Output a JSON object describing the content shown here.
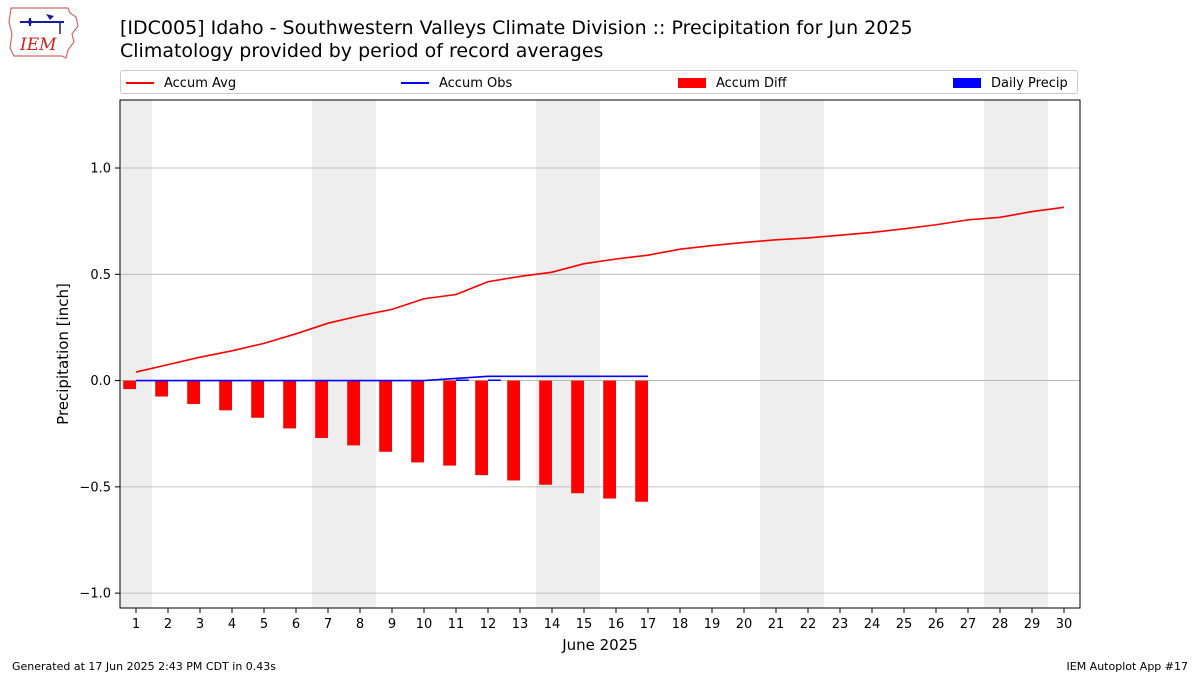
{
  "header": {
    "title": "[IDC005] Idaho - Southwestern Valleys Climate Division :: Precipitation for Jun 2025",
    "subtitle": "Climatology provided by period of record averages"
  },
  "logo": {
    "text": "IEM",
    "icon": "iem-iowa-map-logo-icon"
  },
  "footer": {
    "left": "Generated at 17 Jun 2025 2:43 PM CDT in 0.43s",
    "right": "IEM Autoplot App #17"
  },
  "colors": {
    "avg": "#ff0000",
    "obs": "#0000ff",
    "diff": "#ff0000",
    "daily": "#0000ff",
    "weekend": "#eeeeee",
    "grid": "#b0b0b0"
  },
  "chart_data": {
    "type": "bar",
    "xlabel": "June 2025",
    "ylabel": "Precipitation [inch]",
    "ylim": [
      -1.07,
      1.32
    ],
    "xlim": [
      0.5,
      30.5
    ],
    "yticks": [
      -1.0,
      -0.5,
      0.0,
      0.5,
      1.0
    ],
    "ytick_labels": [
      "−1.0",
      "−0.5",
      "0.0",
      "0.5",
      "1.0"
    ],
    "days": [
      1,
      2,
      3,
      4,
      5,
      6,
      7,
      8,
      9,
      10,
      11,
      12,
      13,
      14,
      15,
      16,
      17,
      18,
      19,
      20,
      21,
      22,
      23,
      24,
      25,
      26,
      27,
      28,
      29,
      30
    ],
    "grid": "horizontal",
    "legend_position": "top",
    "legend": [
      {
        "label": "Accum Avg",
        "kind": "line",
        "color": "#ff0000"
      },
      {
        "label": "Accum Obs",
        "kind": "line",
        "color": "#0000ff"
      },
      {
        "label": "Accum Diff",
        "kind": "patch",
        "color": "#ff0000"
      },
      {
        "label": "Daily Precip",
        "kind": "patch",
        "color": "#0000ff"
      }
    ],
    "weekend_bands": [
      [
        0.5,
        1.5
      ],
      [
        6.5,
        8.5
      ],
      [
        13.5,
        15.5
      ],
      [
        20.5,
        22.5
      ],
      [
        27.5,
        29.5
      ]
    ],
    "series": [
      {
        "name": "Accum Avg",
        "kind": "line",
        "x": [
          1,
          2,
          3,
          4,
          5,
          6,
          7,
          8,
          9,
          10,
          11,
          12,
          13,
          14,
          15,
          16,
          17,
          18,
          19,
          20,
          21,
          22,
          23,
          24,
          25,
          26,
          27,
          28,
          29,
          30
        ],
        "values": [
          0.04,
          0.075,
          0.11,
          0.14,
          0.175,
          0.22,
          0.27,
          0.305,
          0.335,
          0.385,
          0.405,
          0.465,
          0.49,
          0.51,
          0.55,
          0.572,
          0.59,
          0.618,
          0.635,
          0.65,
          0.662,
          0.671,
          0.684,
          0.697,
          0.714,
          0.733,
          0.756,
          0.768,
          0.795,
          0.815
        ]
      },
      {
        "name": "Accum Obs",
        "kind": "line",
        "x": [
          1,
          2,
          3,
          4,
          5,
          6,
          7,
          8,
          9,
          10,
          11,
          12,
          13,
          14,
          15,
          16,
          17
        ],
        "values": [
          0,
          0,
          0,
          0,
          0,
          0,
          0,
          0,
          0,
          0,
          0.01,
          0.02,
          0.02,
          0.02,
          0.02,
          0.02,
          0.02
        ]
      },
      {
        "name": "Accum Diff",
        "kind": "bar",
        "offset": -0.2,
        "x": [
          1,
          2,
          3,
          4,
          5,
          6,
          7,
          8,
          9,
          10,
          11,
          12,
          13,
          14,
          15,
          16,
          17
        ],
        "values": [
          -0.04,
          -0.075,
          -0.11,
          -0.14,
          -0.175,
          -0.225,
          -0.27,
          -0.305,
          -0.335,
          -0.385,
          -0.4,
          -0.445,
          -0.47,
          -0.49,
          -0.53,
          -0.555,
          -0.57
        ]
      },
      {
        "name": "Daily Precip",
        "kind": "bar",
        "offset": 0.2,
        "x": [
          1,
          2,
          3,
          4,
          5,
          6,
          7,
          8,
          9,
          10,
          11,
          12,
          13,
          14,
          15,
          16,
          17
        ],
        "values": [
          0,
          0,
          0,
          0,
          0,
          0,
          0,
          0,
          0,
          0,
          0.005,
          0.005,
          0,
          0,
          0,
          0,
          0
        ]
      }
    ]
  }
}
